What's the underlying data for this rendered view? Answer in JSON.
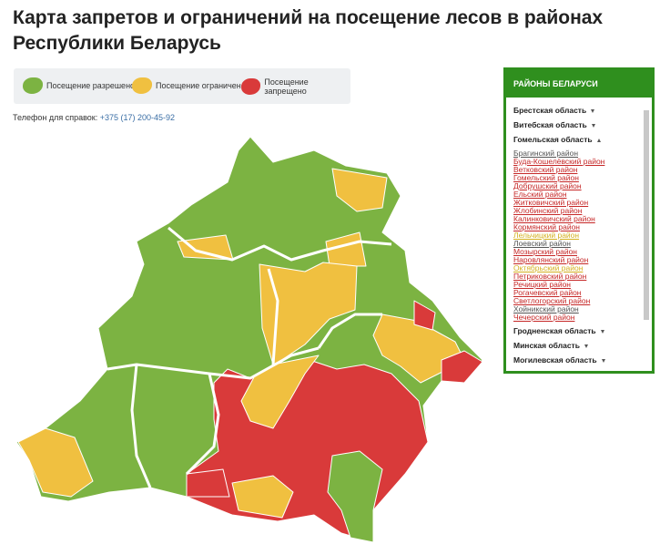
{
  "header": {
    "title": "Карта запретов и ограничений на посещение лесов в районах Республики Беларусь"
  },
  "legend": [
    {
      "label": "Посещение разрешено",
      "color": "#7cb342"
    },
    {
      "label": "Посещение ограничено",
      "color": "#f0c040"
    },
    {
      "label": "Посещение запрещено",
      "color": "#d93a3a"
    }
  ],
  "phone": {
    "label": "Телефон для справок:",
    "number": "+375 (17) 200-45-92"
  },
  "sidebar": {
    "title": "РАЙОНЫ БЕЛАРУСИ",
    "regions_before": [
      "Брестская область",
      "Витебская область"
    ],
    "open_region": "Гомельская область",
    "districts": [
      {
        "name": "Брагинский район",
        "color": "#555555"
      },
      {
        "name": "Буда-Кошелёвский район",
        "color": "#c62828"
      },
      {
        "name": "Ветковский район",
        "color": "#c62828"
      },
      {
        "name": "Гомельский район",
        "color": "#c62828"
      },
      {
        "name": "Добрушский район",
        "color": "#c62828"
      },
      {
        "name": "Ельский район",
        "color": "#c62828"
      },
      {
        "name": "Житковичский район",
        "color": "#c62828"
      },
      {
        "name": "Жлобинский район",
        "color": "#c62828"
      },
      {
        "name": "Калинковичский район",
        "color": "#c62828"
      },
      {
        "name": "Кормянский район",
        "color": "#c62828"
      },
      {
        "name": "Лельчицкий район",
        "color": "#d4b020"
      },
      {
        "name": "Лоевский район",
        "color": "#555555"
      },
      {
        "name": "Мозырский район",
        "color": "#c62828"
      },
      {
        "name": "Наровлянский район",
        "color": "#c62828"
      },
      {
        "name": "Октябрьский район",
        "color": "#d4b020"
      },
      {
        "name": "Петриковский район",
        "color": "#c62828"
      },
      {
        "name": "Речицкий район",
        "color": "#c62828"
      },
      {
        "name": "Рогачевский район",
        "color": "#c62828"
      },
      {
        "name": "Светлогорский район",
        "color": "#c62828"
      },
      {
        "name": "Хойникский район",
        "color": "#555555"
      },
      {
        "name": "Чечерский район",
        "color": "#c62828"
      }
    ],
    "regions_after": [
      "Гродненская область",
      "Минская область",
      "Могилевская область"
    ]
  }
}
